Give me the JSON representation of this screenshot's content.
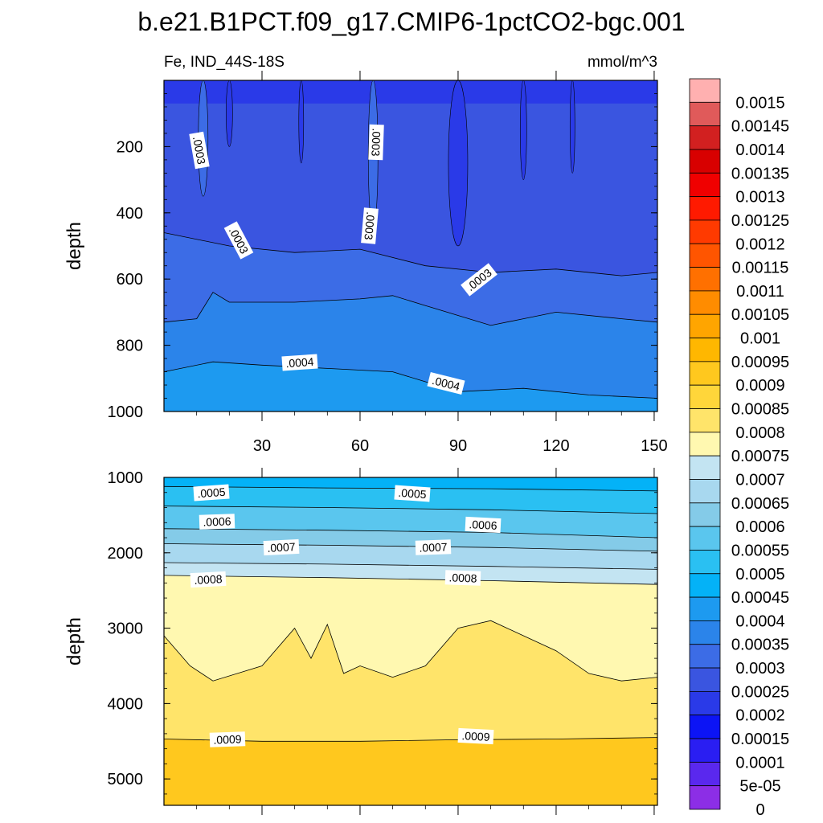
{
  "chart_data": {
    "type": "contour",
    "title": "b.e21.B1PCT.f09_g17.CMIP6-1pctCO2-bgc.001",
    "variable_label": "Fe, IND_44S-18S",
    "units": "mmol/m^3",
    "colors": {
      "bands": [
        "#8c2ee6",
        "#5a28ee",
        "#2a1ef2",
        "#0c14f5",
        "#2a3ae8",
        "#3a55e0",
        "#3c6ce6",
        "#2b84ea",
        "#1d9af0",
        "#04b2f7",
        "#2ac0f2",
        "#5ac6ee",
        "#84cbe8",
        "#a8d8ef",
        "#c3e4f2",
        "#fff8b0",
        "#ffe46a",
        "#ffd63a",
        "#ffc81e",
        "#ffb700",
        "#ffa500",
        "#ff8c00",
        "#ff7000",
        "#ff5500",
        "#ff3a00",
        "#ff1a00",
        "#f00000",
        "#d80000",
        "#d22020",
        "#e05a5a",
        "#ffb0b0"
      ]
    },
    "colorbar_labels": [
      "0.0015",
      "0.00145",
      "0.0014",
      "0.00135",
      "0.0013",
      "0.00125",
      "0.0012",
      "0.00115",
      "0.0011",
      "0.00105",
      "0.001",
      "0.00095",
      "0.0009",
      "0.00085",
      "0.0008",
      "0.00075",
      "0.0007",
      "0.00065",
      "0.0006",
      "0.00055",
      "0.0005",
      "0.00045",
      "0.0004",
      "0.00035",
      "0.0003",
      "0.00025",
      "0.0002",
      "0.00015",
      "0.0001",
      "5e-05",
      "0"
    ],
    "top_panel": {
      "ylabel": "depth",
      "yrange": [
        0,
        1000
      ],
      "xrange": [
        0,
        151
      ],
      "yticks": [
        200,
        400,
        600,
        800,
        1000
      ],
      "xticks": [
        30,
        60,
        90,
        120,
        150
      ],
      "contours": [
        {
          "level": 0.00025,
          "x": [
            0,
            20,
            40,
            60,
            80,
            100,
            120,
            140,
            151
          ],
          "depth": [
            460,
            500,
            520,
            510,
            560,
            580,
            570,
            590,
            580
          ]
        },
        {
          "level": 0.0003,
          "x": [
            0,
            10,
            15,
            20,
            40,
            60,
            70,
            80,
            100,
            110,
            120,
            140,
            151
          ],
          "depth": [
            730,
            720,
            640,
            670,
            670,
            660,
            650,
            680,
            740,
            720,
            700,
            720,
            730
          ]
        },
        {
          "level": 0.00035,
          "x": [
            0,
            15,
            30,
            50,
            70,
            90,
            110,
            130,
            151
          ],
          "depth": [
            880,
            850,
            860,
            870,
            880,
            940,
            930,
            950,
            960
          ]
        }
      ],
      "labels": [
        ".0003",
        ".0003",
        ".0003",
        ".0003",
        ".0003",
        ".0004",
        ".0004"
      ]
    },
    "bottom_panel": {
      "ylabel": "depth",
      "yrange": [
        1000,
        5350
      ],
      "xrange": [
        0,
        151
      ],
      "yticks": [
        1000,
        2000,
        3000,
        4000,
        5000
      ],
      "contours": [
        {
          "level": 0.0005,
          "x": [
            0,
            50,
            100,
            151
          ],
          "depth": [
            1120,
            1140,
            1150,
            1180
          ]
        },
        {
          "level": 0.00055,
          "x": [
            0,
            50,
            100,
            151
          ],
          "depth": [
            1380,
            1400,
            1430,
            1480
          ]
        },
        {
          "level": 0.0006,
          "x": [
            0,
            50,
            100,
            151
          ],
          "depth": [
            1680,
            1700,
            1730,
            1800
          ]
        },
        {
          "level": 0.00065,
          "x": [
            0,
            50,
            100,
            151
          ],
          "depth": [
            1880,
            1900,
            1930,
            1980
          ]
        },
        {
          "level": 0.0007,
          "x": [
            0,
            50,
            100,
            151
          ],
          "depth": [
            2130,
            2150,
            2180,
            2220
          ]
        },
        {
          "level": 0.00075,
          "x": [
            0,
            50,
            100,
            151
          ],
          "depth": [
            2300,
            2330,
            2370,
            2420
          ]
        },
        {
          "level": 0.0008,
          "x": [
            0,
            8,
            15,
            30,
            40,
            45,
            50,
            55,
            60,
            70,
            80,
            90,
            100,
            110,
            120,
            130,
            140,
            151
          ],
          "depth": [
            3100,
            3500,
            3700,
            3500,
            3000,
            3400,
            2950,
            3600,
            3500,
            3650,
            3500,
            3000,
            2900,
            3100,
            3300,
            3600,
            3700,
            3650
          ]
        },
        {
          "level": 0.00085,
          "x": [
            0,
            30,
            60,
            90,
            120,
            151
          ],
          "depth": [
            4470,
            4500,
            4500,
            4480,
            4470,
            4450
          ]
        }
      ],
      "labels": [
        ".0005",
        ".0005",
        ".0006",
        ".0006",
        ".0007",
        ".0007",
        ".0008",
        ".0008",
        ".0009",
        ".0009"
      ]
    }
  }
}
